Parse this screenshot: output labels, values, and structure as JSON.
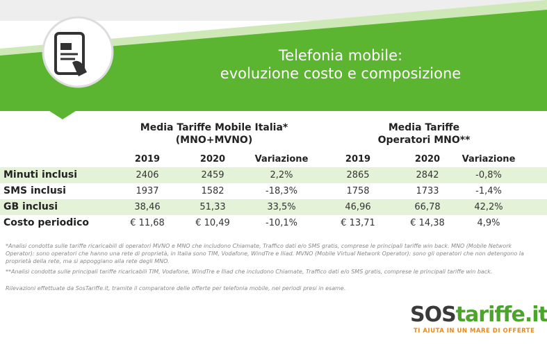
{
  "header": {
    "title_line1": "Telefonia mobile:",
    "title_line2": "evoluzione costo e composizione"
  },
  "table": {
    "groups": [
      {
        "title_line1": "Media Tariffe Mobile Italia*",
        "title_line2": "(MNO+MVNO)"
      },
      {
        "title_line1": "Media Tariffe",
        "title_line2": "Operatori MNO**"
      }
    ],
    "columns": [
      "2019",
      "2020",
      "Variazione",
      "2019",
      "2020",
      "Variazione"
    ],
    "rows": [
      [
        "Minuti inclusi",
        "2406",
        "2459",
        "2,2%",
        "2865",
        "2842",
        "-0,8%"
      ],
      [
        "SMS inclusi",
        "1937",
        "1582",
        "-18,3%",
        "1758",
        "1733",
        "-1,4%"
      ],
      [
        "GB inclusi",
        "38,46",
        "51,33",
        "33,5%",
        "46,96",
        "66,78",
        "42,2%"
      ],
      [
        "Costo periodico",
        "€ 11,68",
        "€ 10,49",
        "-10,1%",
        "€ 13,71",
        "€ 14,38",
        "4,9%"
      ]
    ]
  },
  "footnotes": [
    "*Analisi condotta sulle tariffe ricaricabili di operatori MVNO e MNO che includono Chiamate, Traffico dati e/o SMS gratis, comprese le principali tariffe win back. MNO (Mobile Network Operator): sono operatori che hanno una rete di proprietà, in Italia sono TIM, Vodafone, WindTre e Iliad. MVNO (Mobile Virtual Network Operator): sono gli operatori che non detengono la proprietà della rete, ma si appoggiano alla rete degli MNO.",
    "**Analisi condotta sulle principali tariffe ricaricabili TIM, Vodafone, WindTre e Iliad che includono Chiamate, Traffico dati e/o SMS gratis, comprese le principali tariffe win back.",
    "Rilevazioni effettuate da SosTariffe.it, tramite il comparatore delle offerte per telefonia mobile, nei periodi presi in esame."
  ],
  "logo": {
    "brand_part1": "SOS",
    "brand_part2": "tariffe.it",
    "tagline": "TI AIUTA IN UN MARE DI OFFERTE"
  }
}
